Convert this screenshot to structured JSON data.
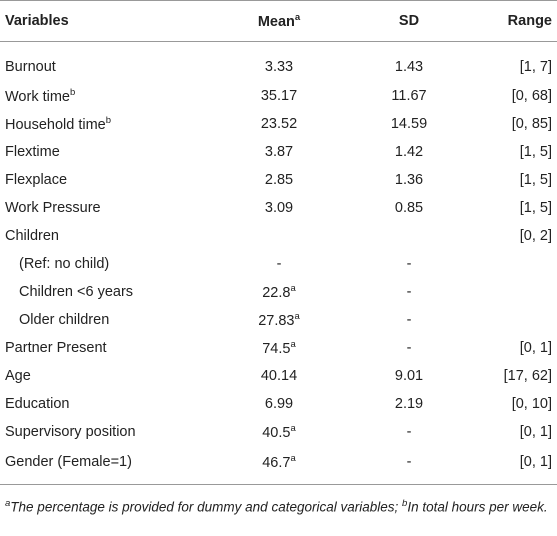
{
  "table": {
    "header": [
      "Variables",
      {
        "text": "Mean",
        "sup": "a"
      },
      "SD",
      "Range"
    ],
    "rows": [
      [
        "Burnout",
        "3.33",
        "1.43",
        "[1, 7]"
      ],
      [
        {
          "text": "Work time",
          "sup": "b"
        },
        "35.17",
        "11.67",
        "[0, 68]"
      ],
      [
        {
          "text": "Household time",
          "sup": "b"
        },
        "23.52",
        "14.59",
        "[0, 85]"
      ],
      [
        "Flextime",
        "3.87",
        "1.42",
        "[1, 5]"
      ],
      [
        "Flexplace",
        "2.85",
        "1.36",
        "[1, 5]"
      ],
      [
        "Work Pressure",
        "3.09",
        "0.85",
        "[1, 5]"
      ],
      [
        "Children",
        null,
        null,
        "[0, 2]"
      ],
      [
        "(Ref: no child)",
        "-",
        "-",
        null
      ],
      [
        "Children <6 years",
        {
          "text": "22.8",
          "sup": "a"
        },
        "-",
        null
      ],
      [
        "Older children",
        {
          "text": "27.83",
          "sup": "a"
        },
        "-",
        null
      ],
      [
        "Partner Present",
        {
          "text": "74.5",
          "sup": "a"
        },
        "-",
        "[0, 1]"
      ],
      [
        "Age",
        "40.14",
        "9.01",
        "[17, 62]"
      ],
      [
        "Education",
        "6.99",
        "2.19",
        "[0, 10]"
      ],
      [
        "Supervisory position",
        {
          "text": "40.5",
          "sup": "a"
        },
        "-",
        "[0, 1]"
      ],
      [
        "Gender (Female=1)",
        {
          "text": "46.7",
          "sup": "a"
        },
        "-",
        "[0, 1]"
      ]
    ],
    "footnote": [
      {
        "sup": "a",
        "text": "The percentage is provided for dummy and categorical variables;"
      },
      {
        "sup": "b",
        "text": "In total hours per week."
      }
    ]
  }
}
